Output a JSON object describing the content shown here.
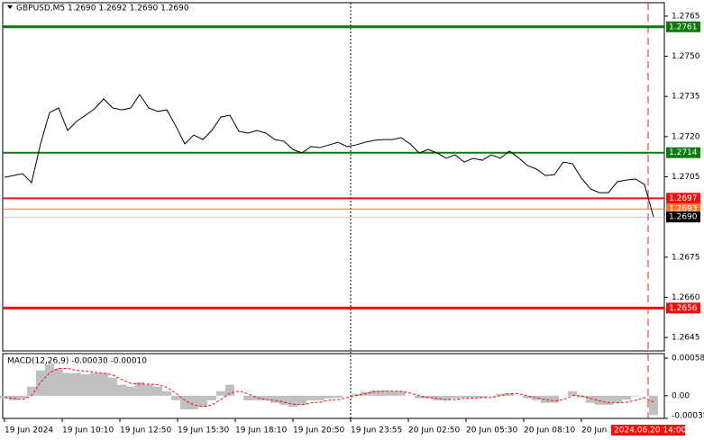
{
  "chart_data": [
    {
      "type": "line",
      "title": "GBPUSD,M5  1.2690 1.2692 1.2690 1.2690",
      "ylim": [
        1.264,
        1.277
      ],
      "yticks": [
        1.2765,
        {
          "value": 1.275,
          "label": "1.2750"
        },
        1.2735,
        {
          "value": 1.272,
          "label": "1.2720"
        },
        1.2705,
        1.2675,
        {
          "value": 1.266,
          "label": "1.2660"
        },
        1.2645
      ],
      "x_labels": [
        "19 Jun 2024",
        "19 Jun 10:10",
        "19 Jun 12:50",
        "19 Jun 15:30",
        "19 Jun 18:10",
        "19 Jun 20:50",
        "19 Jun 23:55",
        "20 Jun 02:50",
        "20 Jun 05:30",
        "20 Jun 08:10",
        "20 Jun 1"
      ],
      "current_time": "2024.06.20 14:00",
      "levels": [
        {
          "value": 1.2761,
          "label": "1.2761",
          "color": "#0e7a0e"
        },
        {
          "value": 1.2714,
          "label": "1.2714",
          "color": "#0e7a0e"
        },
        {
          "value": 1.2697,
          "label": "1.2697",
          "color": "#f01010"
        },
        {
          "value": 1.2693,
          "label": "1.2693",
          "color": "#f07830"
        },
        {
          "value": 1.269,
          "label": "1.2690",
          "color": "#000000"
        },
        {
          "value": 1.2656,
          "label": "1.2656",
          "color": "#f01010"
        }
      ],
      "series": [
        {
          "name": "GBPUSD",
          "color": "#000000",
          "values": [
            1.27048,
            1.27055,
            1.27062,
            1.27028,
            1.27173,
            1.2729,
            1.27307,
            1.27223,
            1.27257,
            1.2728,
            1.27304,
            1.27341,
            1.27307,
            1.273,
            1.27307,
            1.27357,
            1.27307,
            1.27294,
            1.273,
            1.2724,
            1.27173,
            1.27206,
            1.27189,
            1.27223,
            1.27273,
            1.2728,
            1.2722,
            1.27213,
            1.27223,
            1.27213,
            1.27189,
            1.27183,
            1.27152,
            1.27139,
            1.27163,
            1.27159,
            1.27169,
            1.27179,
            1.27163,
            1.27169,
            1.27179,
            1.27186,
            1.27189,
            1.27189,
            1.27196,
            1.27173,
            1.27139,
            1.27152,
            1.27139,
            1.27119,
            1.27132,
            1.27105,
            1.27119,
            1.27112,
            1.27132,
            1.27119,
            1.27146,
            1.27122,
            1.27092,
            1.27079,
            1.27055,
            1.27058,
            1.27105,
            1.27099,
            1.27045,
            1.27005,
            1.26991,
            1.26991,
            1.27032,
            1.27038,
            1.27042,
            1.27021,
            1.269
          ]
        }
      ]
    },
    {
      "type": "bar",
      "title": "MACD(12,26,9) -0.00030 -0.00010",
      "ylim": [
        -0.00035,
        0.00065
      ],
      "yticks": [
        0.00058,
        {
          "value": 0,
          "label": "0.00"
        },
        -0.00035
      ],
      "series": [
        {
          "name": "MACD",
          "color": "#c0c0c0",
          "values": [
            -4e-05,
            -7e-05,
            -4e-05,
            0.00014,
            0.00039,
            0.00049,
            0.00042,
            0.00035,
            0.00035,
            0.00033,
            0.00035,
            0.00035,
            0.00028,
            0.00017,
            0.00014,
            0.00021,
            0.00017,
            0.00014,
            7e-05,
            -7e-05,
            -0.00021,
            -0.00021,
            -0.00017,
            -7e-05,
            7e-05,
            0.00017,
            0,
            -7e-05,
            -7e-05,
            -7e-05,
            -0.00011,
            -0.00014,
            -0.00017,
            -0.00014,
            -7e-05,
            -7e-05,
            -4e-05,
            -3e-05,
            0,
            3e-05,
            6e-05,
            8e-05,
            8e-05,
            7e-05,
            7e-05,
            0,
            -4e-05,
            -4e-05,
            -7e-05,
            -7e-05,
            -4e-05,
            -3e-05,
            -3e-05,
            -3e-05,
            -1e-05,
            3e-05,
            4e-05,
            0,
            -4e-05,
            -7e-05,
            -0.00011,
            -0.00011,
            0,
            7e-05,
            -3e-05,
            -0.00011,
            -0.00014,
            -0.00014,
            -0.00011,
            -6e-05,
            -1e-05,
            0,
            -0.0003
          ]
        },
        {
          "name": "Signal",
          "color": "#f01010",
          "values": [
            -3e-05,
            -4e-05,
            -6e-05,
            0,
            0.00021,
            0.00035,
            0.00042,
            0.00042,
            0.00039,
            0.00038,
            0.00036,
            0.00035,
            0.00032,
            0.00025,
            0.00019,
            0.00018,
            0.00018,
            0.00017,
            0.00013,
            4e-05,
            -7e-05,
            -0.00014,
            -0.00017,
            -0.00014,
            -6e-05,
            4e-05,
            7e-05,
            3e-05,
            -3e-05,
            -6e-05,
            -7e-05,
            -0.0001,
            -0.00013,
            -0.00014,
            -0.00011,
            -0.0001,
            -7e-05,
            -6e-05,
            -3e-05,
            0,
            3e-05,
            6e-05,
            7e-05,
            7e-05,
            7e-05,
            4e-05,
            0,
            -3e-05,
            -4e-05,
            -6e-05,
            -6e-05,
            -4e-05,
            -4e-05,
            -3e-05,
            -3e-05,
            0,
            3e-05,
            3e-05,
            0,
            -3e-05,
            -6e-05,
            -8e-05,
            -6e-05,
            0,
            0,
            -4e-05,
            -8e-05,
            -0.00011,
            -0.00011,
            -0.0001,
            -7e-05,
            -3e-05,
            -0.0001
          ]
        }
      ]
    }
  ]
}
